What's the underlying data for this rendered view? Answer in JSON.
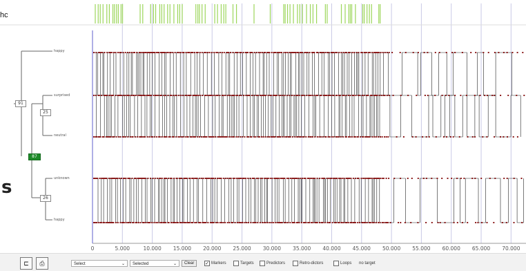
{
  "header_text": "hc",
  "big_letter": "s",
  "tree": {
    "root_label": "91",
    "active_node_label": "87",
    "node_upper": "25",
    "node_lower": "26",
    "leaves": [
      "happy",
      "surprised",
      "neutral",
      "unknown",
      "happy"
    ]
  },
  "x_axis": {
    "ticks": [
      "0",
      "5.000",
      "10.000",
      "15.000",
      "20.000",
      "25.000",
      "30.000",
      "35.000",
      "40.000",
      "45.000",
      "50.000",
      "55.000",
      "60.000",
      "65.000",
      "70.000"
    ]
  },
  "toolbar": {
    "select_left": "Select",
    "select_right": "Selected",
    "clear_label": "Clear",
    "markers_label": "Markers",
    "targets_label": "Targets",
    "predictors_label": "Predictors",
    "retro_label": "Retro-dictors",
    "loops_label": "Loops",
    "no_target_label": "no target",
    "markers_checked": true,
    "targets_checked": false,
    "predictors_checked": false,
    "retro_checked": false,
    "loops_checked": false
  },
  "colors": {
    "marker": "#8b1a1a",
    "trace": "#222222",
    "green_tick": "#9cd65a",
    "grid": "#c9c9e6",
    "active_node": "#1f8a2a"
  }
}
